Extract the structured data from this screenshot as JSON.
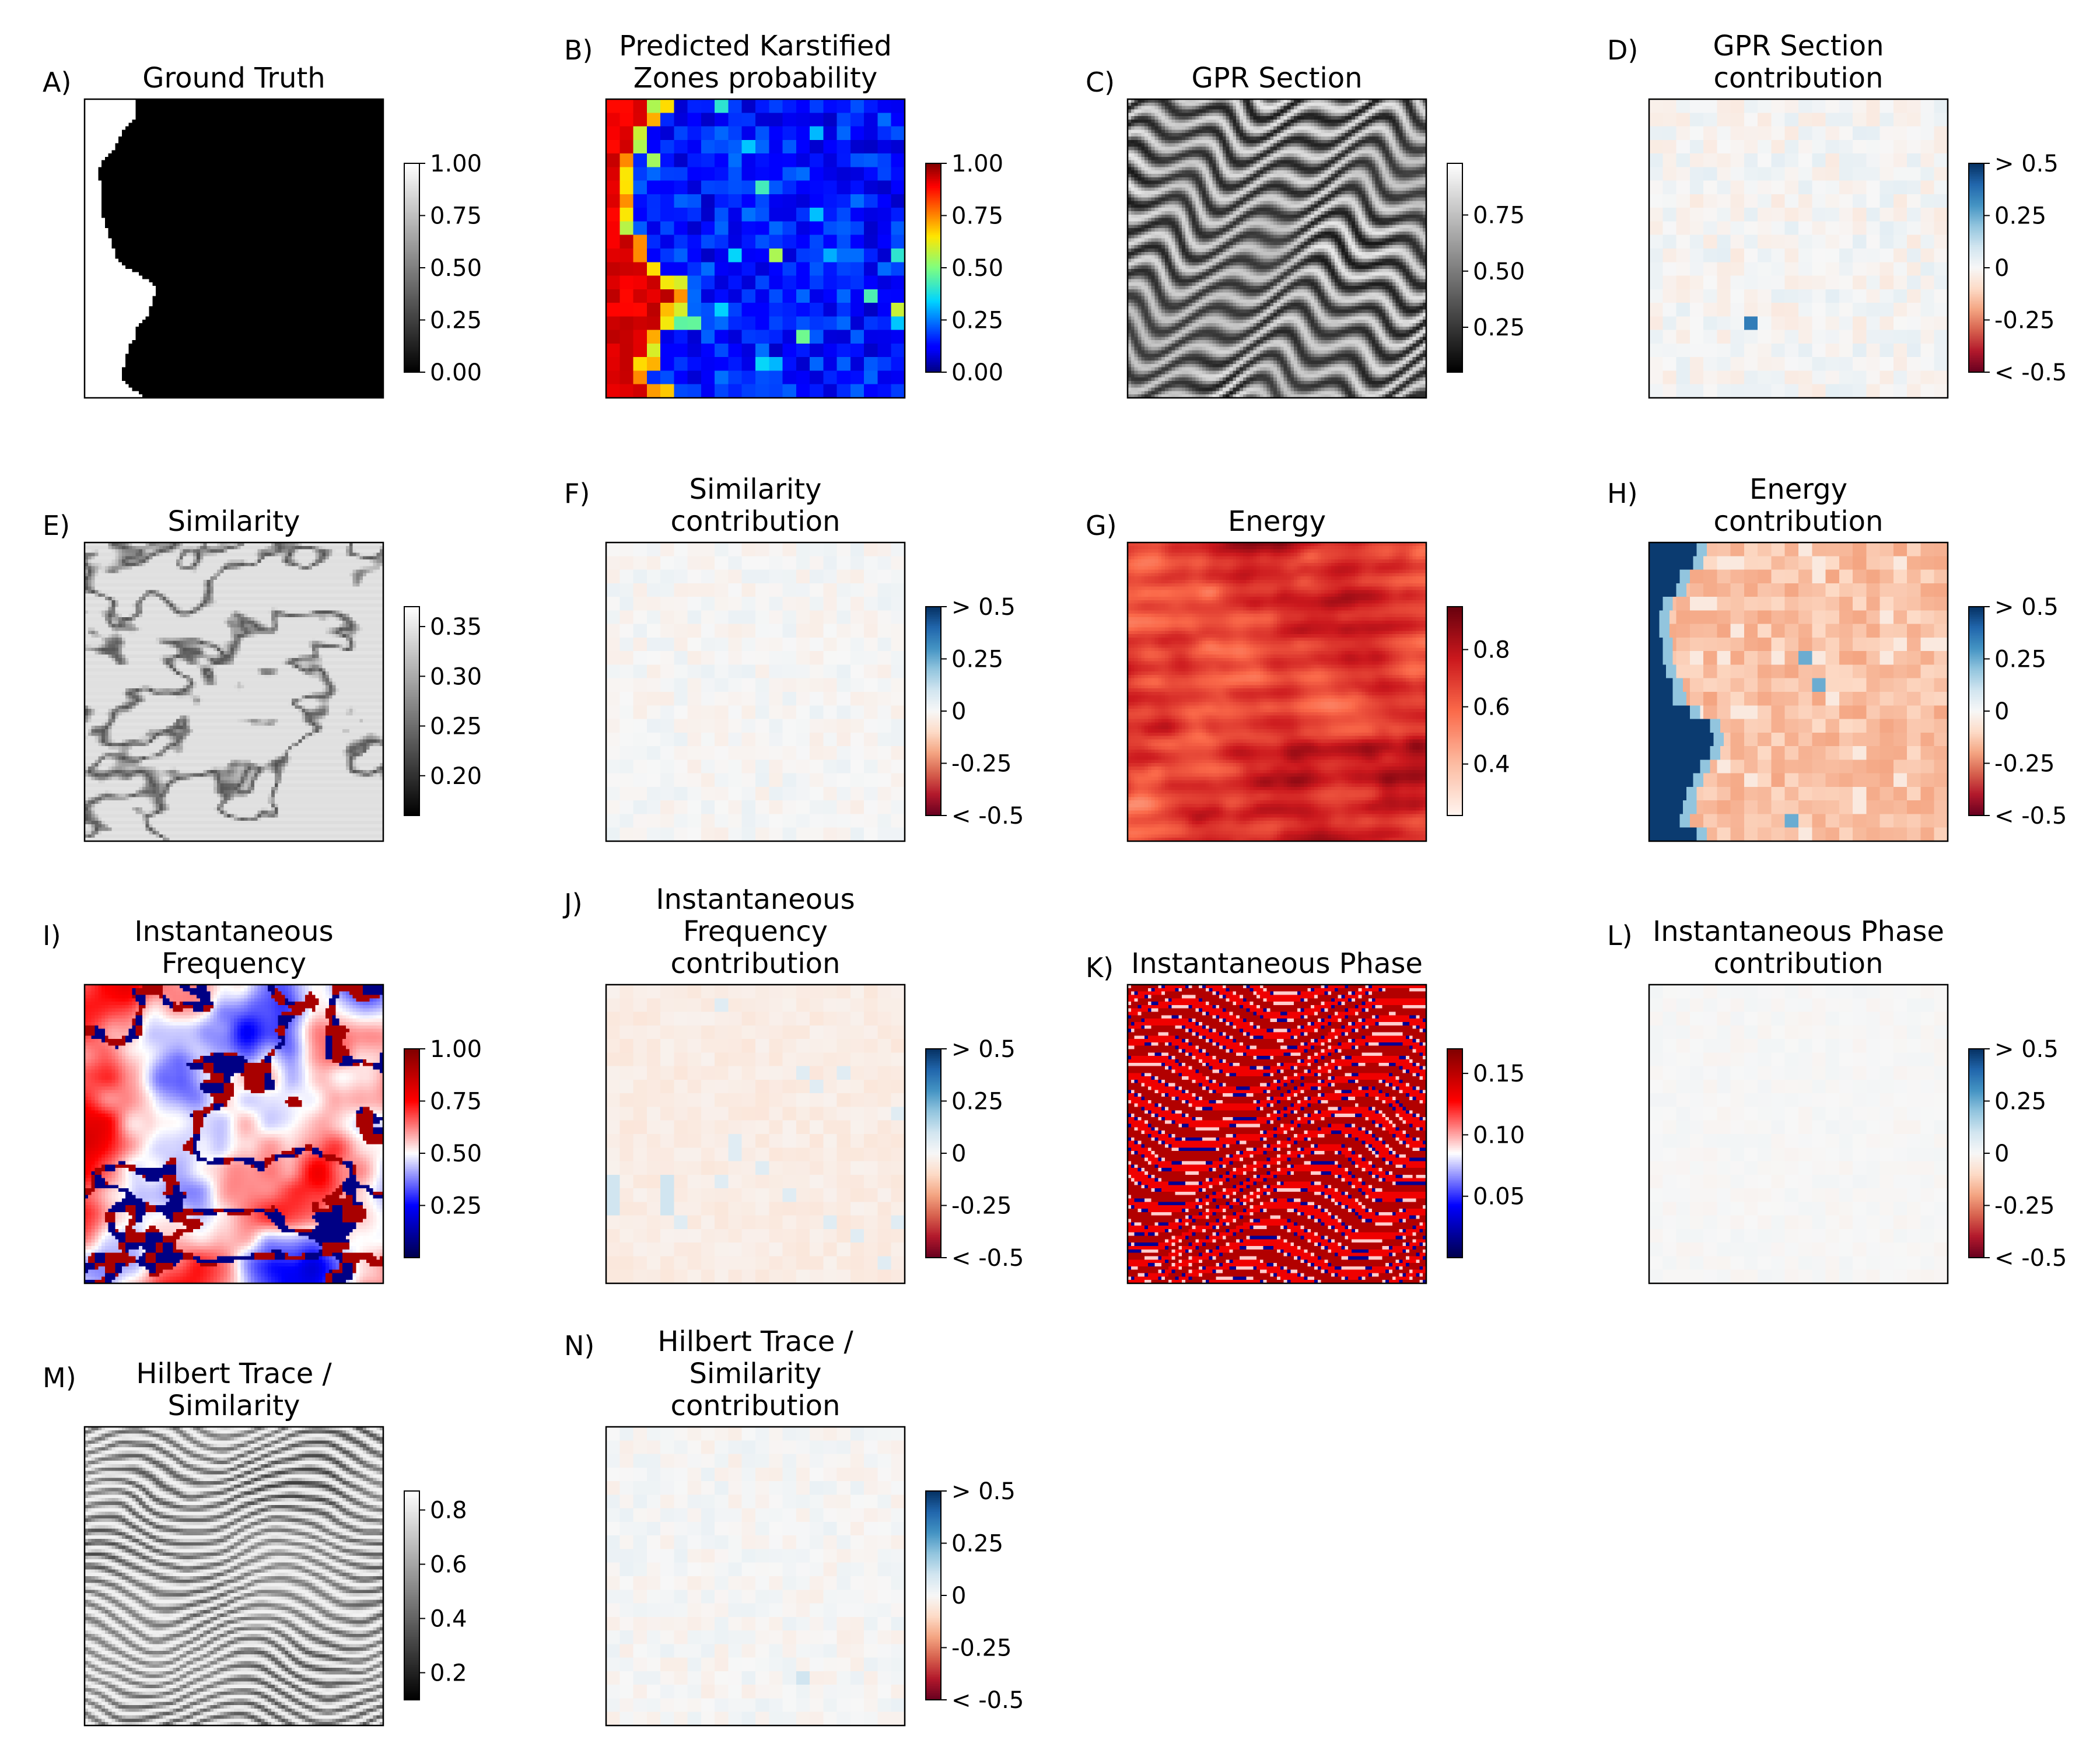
{
  "colors": {
    "gray_low": "#000000",
    "gray_high": "#ffffff",
    "jet_low": "#00007f",
    "jet_mid": "#7fff7f",
    "jet_high": "#7f0000",
    "rdbu_low": "#67001f",
    "rdbu_mid": "#f7f7f7",
    "rdbu_high": "#053061",
    "reds_low": "#fff5f0",
    "reds_high": "#67000d",
    "seismic_low": "#00004c",
    "seismic_mid": "#ffffff",
    "seismic_high": "#7f0000"
  },
  "chart_data": [
    {
      "type": "heatmap",
      "panel_letter": "A)",
      "title": [
        "Ground Truth"
      ],
      "cmap": "gray",
      "texture": "ground_truth",
      "colorbar": {
        "range": [
          0,
          1
        ],
        "ticks": [
          0,
          0.25,
          0.5,
          0.75,
          1.0
        ],
        "tick_labels": [
          "0.00",
          "0.25",
          "0.50",
          "0.75",
          "1.00"
        ]
      }
    },
    {
      "type": "heatmap",
      "panel_letter": "B)",
      "title": [
        "Predicted Karstified",
        "Zones probability"
      ],
      "cmap": "jet",
      "texture": "prediction",
      "colorbar": {
        "range": [
          0,
          1
        ],
        "ticks": [
          0,
          0.25,
          0.5,
          0.75,
          1.0
        ],
        "tick_labels": [
          "0.00",
          "0.25",
          "0.50",
          "0.75",
          "1.00"
        ]
      }
    },
    {
      "type": "heatmap",
      "panel_letter": "C)",
      "title": [
        "GPR Section"
      ],
      "cmap": "gray",
      "texture": "gpr",
      "colorbar": {
        "range": [
          0.05,
          0.98
        ],
        "ticks": [
          0.25,
          0.5,
          0.75
        ],
        "tick_labels": [
          "0.25",
          "0.50",
          "0.75"
        ]
      }
    },
    {
      "type": "heatmap",
      "panel_letter": "D)",
      "title": [
        "GPR Section",
        "contribution"
      ],
      "cmap": "rdbu",
      "texture": "contrib_d",
      "colorbar": {
        "range": [
          -0.5,
          0.5
        ],
        "ticks": [
          -0.5,
          -0.25,
          0,
          0.25,
          0.5
        ],
        "tick_labels": [
          "< -0.5",
          "-0.25",
          "0",
          "0.25",
          "> 0.5"
        ]
      }
    },
    {
      "type": "heatmap",
      "panel_letter": "E)",
      "title": [
        "Similarity"
      ],
      "cmap": "gray",
      "texture": "similarity",
      "colorbar": {
        "range": [
          0.16,
          0.37
        ],
        "ticks": [
          0.2,
          0.25,
          0.3,
          0.35
        ],
        "tick_labels": [
          "0.20",
          "0.25",
          "0.30",
          "0.35"
        ]
      }
    },
    {
      "type": "heatmap",
      "panel_letter": "F)",
      "title": [
        "Similarity",
        "contribution"
      ],
      "cmap": "rdbu",
      "texture": "contrib_f",
      "colorbar": {
        "range": [
          -0.5,
          0.5
        ],
        "ticks": [
          -0.5,
          -0.25,
          0,
          0.25,
          0.5
        ],
        "tick_labels": [
          "< -0.5",
          "-0.25",
          "0",
          "0.25",
          "> 0.5"
        ]
      }
    },
    {
      "type": "heatmap",
      "panel_letter": "G)",
      "title": [
        "Energy"
      ],
      "cmap": "reds",
      "texture": "energy",
      "colorbar": {
        "range": [
          0.22,
          0.95
        ],
        "ticks": [
          0.4,
          0.6,
          0.8
        ],
        "tick_labels": [
          "0.4",
          "0.6",
          "0.8"
        ]
      }
    },
    {
      "type": "heatmap",
      "panel_letter": "H)",
      "title": [
        "Energy",
        "contribution"
      ],
      "cmap": "rdbu",
      "texture": "contrib_h",
      "colorbar": {
        "range": [
          -0.5,
          0.5
        ],
        "ticks": [
          -0.5,
          -0.25,
          0,
          0.25,
          0.5
        ],
        "tick_labels": [
          "< -0.5",
          "-0.25",
          "0",
          "0.25",
          "> 0.5"
        ]
      }
    },
    {
      "type": "heatmap",
      "panel_letter": "I)",
      "title": [
        "Instantaneous",
        "Frequency"
      ],
      "cmap": "seismic",
      "texture": "inst_freq",
      "colorbar": {
        "range": [
          0.0,
          1.0
        ],
        "ticks": [
          0.25,
          0.5,
          0.75,
          1.0
        ],
        "tick_labels": [
          "0.25",
          "0.50",
          "0.75",
          "1.00"
        ]
      }
    },
    {
      "type": "heatmap",
      "panel_letter": "J)",
      "title": [
        "Instantaneous",
        "Frequency",
        "contribution"
      ],
      "cmap": "rdbu",
      "texture": "contrib_j",
      "colorbar": {
        "range": [
          -0.5,
          0.5
        ],
        "ticks": [
          -0.5,
          -0.25,
          0,
          0.25,
          0.5
        ],
        "tick_labels": [
          "< -0.5",
          "-0.25",
          "0",
          "0.25",
          "> 0.5"
        ]
      }
    },
    {
      "type": "heatmap",
      "panel_letter": "K)",
      "title": [
        "Instantaneous Phase"
      ],
      "cmap": "seismic",
      "texture": "inst_phase",
      "colorbar": {
        "range": [
          0.0,
          0.17
        ],
        "ticks": [
          0.05,
          0.1,
          0.15
        ],
        "tick_labels": [
          "0.05",
          "0.10",
          "0.15"
        ]
      }
    },
    {
      "type": "heatmap",
      "panel_letter": "L)",
      "title": [
        "Instantaneous Phase",
        "contribution"
      ],
      "cmap": "rdbu",
      "texture": "contrib_l",
      "colorbar": {
        "range": [
          -0.5,
          0.5
        ],
        "ticks": [
          -0.5,
          -0.25,
          0,
          0.25,
          0.5
        ],
        "tick_labels": [
          "< -0.5",
          "-0.25",
          "0",
          "0.25",
          "> 0.5"
        ]
      }
    },
    {
      "type": "heatmap",
      "panel_letter": "M)",
      "title": [
        "Hilbert Trace /",
        "Similarity"
      ],
      "cmap": "gray",
      "texture": "hilbert",
      "colorbar": {
        "range": [
          0.1,
          0.87
        ],
        "ticks": [
          0.2,
          0.4,
          0.6,
          0.8
        ],
        "tick_labels": [
          "0.2",
          "0.4",
          "0.6",
          "0.8"
        ]
      }
    },
    {
      "type": "heatmap",
      "panel_letter": "N)",
      "title": [
        "Hilbert Trace /",
        "Similarity",
        "contribution"
      ],
      "cmap": "rdbu",
      "texture": "contrib_n",
      "colorbar": {
        "range": [
          -0.5,
          0.5
        ],
        "ticks": [
          -0.5,
          -0.25,
          0,
          0.25,
          0.5
        ],
        "tick_labels": [
          "< -0.5",
          "-0.25",
          "0",
          "0.25",
          "> 0.5"
        ]
      }
    }
  ]
}
